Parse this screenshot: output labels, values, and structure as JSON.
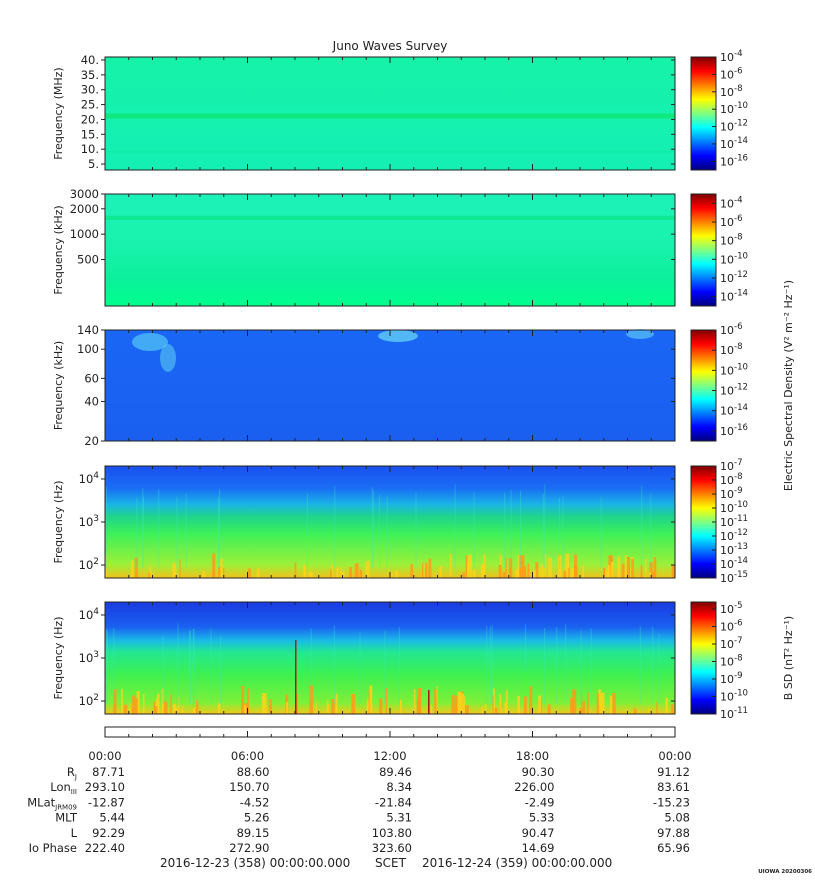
{
  "title": "Juno Waves Survey",
  "chart_data": [
    {
      "type": "heatmap",
      "panel": "HFR high",
      "ylabel": "Frequency (MHz)",
      "yscale": "linear",
      "ylim": [
        3,
        41
      ],
      "yticks": [
        5,
        10,
        15,
        20,
        25,
        30,
        35,
        40
      ],
      "yticklabels": [
        "5.",
        "10.",
        "15.",
        "20.",
        "25.",
        "30.",
        "35.",
        "40."
      ],
      "colorbar": {
        "label": "",
        "log": true,
        "range_exp": [
          -17,
          -4
        ],
        "ticks": [
          {
            "exp": "-4",
            "v": -4
          },
          {
            "exp": "-6",
            "v": -6
          },
          {
            "exp": "-8",
            "v": -8
          },
          {
            "exp": "-10",
            "v": -10
          },
          {
            "exp": "-12",
            "v": -12
          },
          {
            "exp": "-14",
            "v": -14
          },
          {
            "exp": "-16",
            "v": -16
          }
        ]
      }
    },
    {
      "type": "heatmap",
      "panel": "HFR low",
      "ylabel": "Frequency (kHz)",
      "yscale": "log",
      "ylim": [
        140,
        3000
      ],
      "yticks": [
        500,
        1000,
        2000,
        3000
      ],
      "yticklabels": [
        "500",
        "1000",
        "2000",
        "3000"
      ],
      "colorbar": {
        "label": "",
        "log": true,
        "range_exp": [
          -15,
          -3
        ],
        "ticks": [
          {
            "exp": "-4",
            "v": -4
          },
          {
            "exp": "-6",
            "v": -6
          },
          {
            "exp": "-8",
            "v": -8
          },
          {
            "exp": "-10",
            "v": -10
          },
          {
            "exp": "-12",
            "v": -12
          },
          {
            "exp": "-14",
            "v": -14
          }
        ]
      }
    },
    {
      "type": "heatmap",
      "panel": "LFR high",
      "ylabel": "Frequency (kHz)",
      "yscale": "log",
      "ylim": [
        20,
        140
      ],
      "yticks": [
        20,
        40,
        60,
        100,
        140
      ],
      "yticklabels": [
        "20",
        "40",
        "60",
        "100",
        "140"
      ],
      "colorbar": {
        "label": "Electric Spectral Density (V² m⁻² Hz⁻¹)",
        "log": true,
        "range_exp": [
          -17,
          -6
        ],
        "ticks": [
          {
            "exp": "-6",
            "v": -6
          },
          {
            "exp": "-8",
            "v": -8
          },
          {
            "exp": "-10",
            "v": -10
          },
          {
            "exp": "-12",
            "v": -12
          },
          {
            "exp": "-14",
            "v": -14
          },
          {
            "exp": "-16",
            "v": -16
          }
        ]
      }
    },
    {
      "type": "heatmap",
      "panel": "LFR low E",
      "ylabel": "Frequency (Hz)",
      "yscale": "log",
      "ylim": [
        50,
        20000
      ],
      "yticks": [
        100,
        1000,
        10000
      ],
      "yticklabels": [
        {
          "b": "10",
          "e": "2"
        },
        {
          "b": "10",
          "e": "3"
        },
        {
          "b": "10",
          "e": "4"
        }
      ],
      "colorbar": {
        "label": "",
        "log": true,
        "range_exp": [
          -15,
          -7
        ],
        "ticks": [
          {
            "exp": "-7",
            "v": -7
          },
          {
            "exp": "-8",
            "v": -8
          },
          {
            "exp": "-9",
            "v": -9
          },
          {
            "exp": "-10",
            "v": -10
          },
          {
            "exp": "-11",
            "v": -11
          },
          {
            "exp": "-12",
            "v": -12
          },
          {
            "exp": "-13",
            "v": -13
          },
          {
            "exp": "-14",
            "v": -14
          },
          {
            "exp": "-15",
            "v": -15
          }
        ]
      }
    },
    {
      "type": "heatmap",
      "panel": "LFR low B",
      "ylabel": "Frequency (Hz)",
      "yscale": "log",
      "ylim": [
        50,
        20000
      ],
      "yticks": [
        100,
        1000,
        10000
      ],
      "yticklabels": [
        {
          "b": "10",
          "e": "2"
        },
        {
          "b": "10",
          "e": "3"
        },
        {
          "b": "10",
          "e": "4"
        }
      ],
      "colorbar": {
        "label": "B SD (nT² Hz⁻¹)",
        "log": true,
        "range_exp": [
          -11,
          -4.6
        ],
        "ticks": [
          {
            "exp": "-5",
            "v": -5
          },
          {
            "exp": "-6",
            "v": -6
          },
          {
            "exp": "-7",
            "v": -7
          },
          {
            "exp": "-8",
            "v": -8
          },
          {
            "exp": "-9",
            "v": -9
          },
          {
            "exp": "-10",
            "v": -10
          },
          {
            "exp": "-11",
            "v": -11
          }
        ]
      }
    }
  ],
  "time_axis": {
    "labels": [
      "00:00",
      "06:00",
      "12:00",
      "18:00",
      "00:00"
    ],
    "hours": [
      0,
      6,
      12,
      18,
      24
    ],
    "range_hours": [
      0,
      24
    ]
  },
  "ephemeris": [
    {
      "label": "R",
      "sub": "J",
      "values": [
        "87.71",
        "88.60",
        "89.46",
        "90.30",
        "91.12"
      ]
    },
    {
      "label": "Lon",
      "sub": "III",
      "values": [
        "293.10",
        "150.70",
        "8.34",
        "226.00",
        "83.61"
      ]
    },
    {
      "label": "MLat",
      "sub": "JRM09",
      "values": [
        "-12.87",
        "-4.52",
        "-21.84",
        "-2.49",
        "-15.23"
      ]
    },
    {
      "label": "MLT",
      "sub": "",
      "values": [
        "5.44",
        "5.26",
        "5.31",
        "5.33",
        "5.08"
      ]
    },
    {
      "label": "L",
      "sub": "",
      "values": [
        "92.29",
        "89.15",
        "103.80",
        "90.47",
        "97.88"
      ]
    },
    {
      "label": "Io Phase",
      "sub": "",
      "values": [
        "222.40",
        "272.90",
        "323.60",
        "14.69",
        "65.96"
      ]
    }
  ],
  "footer": {
    "start": "2016-12-23 (358) 00:00:00.000",
    "scet": "SCET",
    "end": "2016-12-24 (359) 00:00:00.000",
    "tag": "UIOWA 20200306"
  }
}
